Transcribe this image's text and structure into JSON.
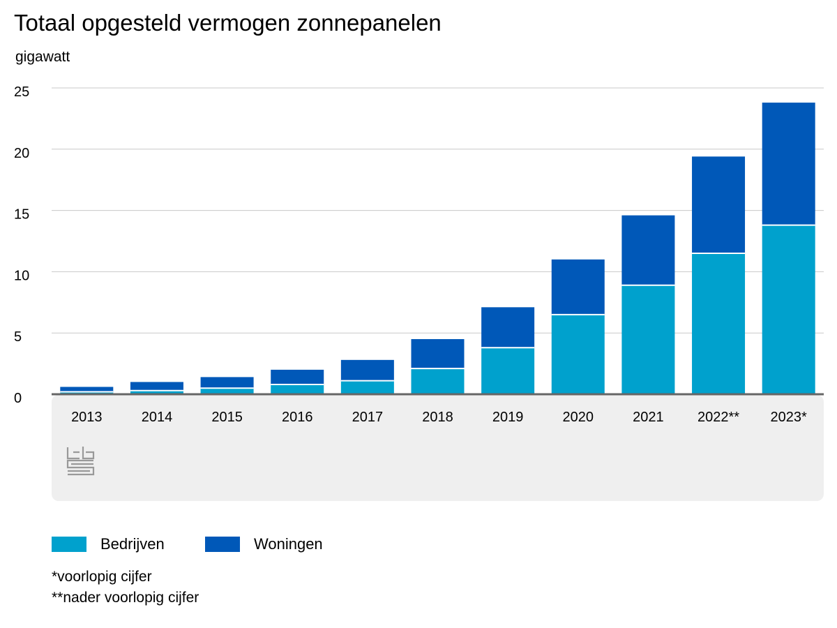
{
  "chart_data": {
    "type": "bar",
    "stacked": true,
    "title": "Totaal opgesteld vermogen zonnepanelen",
    "ylabel": "gigawatt",
    "xlabel": "",
    "categories": [
      "2013",
      "2014",
      "2015",
      "2016",
      "2017",
      "2018",
      "2019",
      "2020",
      "2021",
      "2022**",
      "2023*"
    ],
    "series": [
      {
        "name": "Bedrijven",
        "color": "#00a1cd",
        "values": [
          0.2,
          0.3,
          0.5,
          0.8,
          1.1,
          2.1,
          3.8,
          6.5,
          8.9,
          11.5,
          13.8
        ]
      },
      {
        "name": "Woningen",
        "color": "#0058b8",
        "values": [
          0.4,
          0.7,
          0.9,
          1.2,
          1.7,
          2.4,
          3.3,
          4.5,
          5.7,
          7.9,
          10.0
        ]
      }
    ],
    "ylim": [
      0,
      25
    ],
    "yticks": [
      0,
      5,
      10,
      15,
      20,
      25
    ],
    "grid": true,
    "legend": "bottom-left"
  },
  "notes": [
    "*voorlopig cijfer",
    "**nader voorlopig cijfer"
  ],
  "logo": "cbs"
}
